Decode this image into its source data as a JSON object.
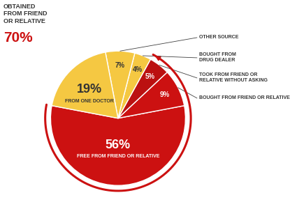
{
  "chart_data": {
    "type": "pie",
    "categories": [
      "FREE FROM FRIEND OR RELATIVE",
      "BOUGHT FROM FRIEND OR RELATIVE",
      "TOOK FROM FRIEND OR\nRELATIVE WITHOUT ASKING",
      "BOUGHT FROM\nDRUG DEALER",
      "OTHER SOURCE",
      "FROM ONE DOCTOR"
    ],
    "values": [
      56,
      9,
      5,
      4,
      7,
      19
    ],
    "value_labels": [
      "56%",
      "9%",
      "5%",
      "4%",
      "7%",
      "19%"
    ],
    "colors": [
      "#cc1111",
      "#cc1111",
      "#bb1111",
      "#f5c842",
      "#f5c842",
      "#f5c842"
    ],
    "data_labels": true,
    "annotations": [
      "OBTAINED\nFROM FRIEND\nOR RELATIVE",
      "70%"
    ]
  }
}
